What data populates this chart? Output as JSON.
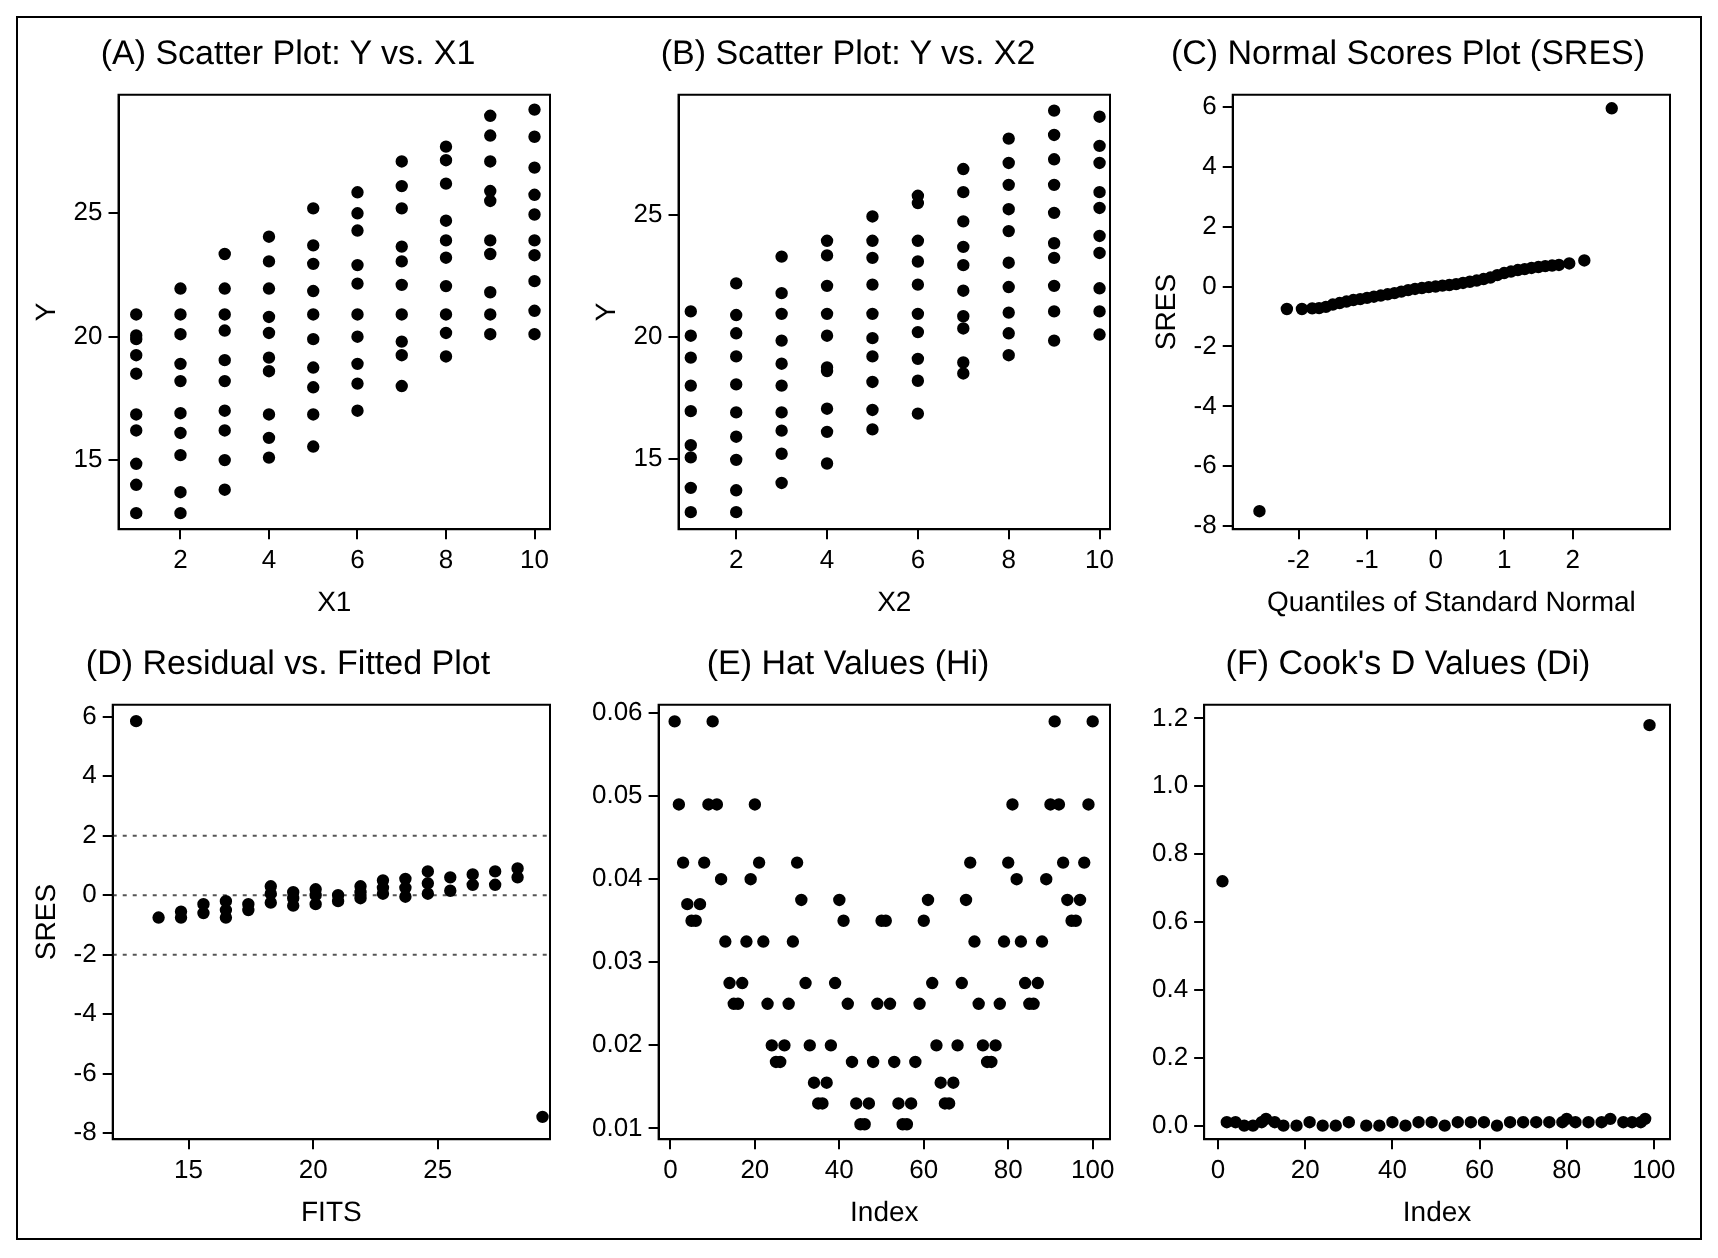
{
  "chart_data": [
    {
      "type": "scatter",
      "title": "(A) Scatter Plot: Y vs. X1",
      "xlabel": "X1",
      "ylabel": "Y",
      "marker": "circle",
      "xlim": [
        0.6,
        10.35
      ],
      "ylim": [
        12.2,
        29.8
      ],
      "xticks": [
        2,
        4,
        6,
        8,
        10
      ],
      "yticks": [
        15,
        20,
        25
      ],
      "series": [
        {
          "color": "#000000",
          "x": [
            1,
            1,
            1,
            1,
            1,
            1,
            1,
            1,
            1,
            1,
            2,
            2,
            2,
            2,
            2,
            2,
            2,
            2,
            2,
            2,
            3,
            3,
            3,
            3,
            3,
            3,
            3,
            3,
            3,
            3,
            4,
            4,
            4,
            4,
            4,
            4,
            4,
            4,
            4,
            4,
            5,
            5,
            5,
            5,
            5,
            5,
            5,
            5,
            5,
            5,
            6,
            6,
            6,
            6,
            6,
            6,
            6,
            6,
            6,
            6,
            7,
            7,
            7,
            7,
            7,
            7,
            7,
            7,
            7,
            7,
            8,
            8,
            8,
            8,
            8,
            8,
            8,
            8,
            8,
            8,
            9,
            9,
            9,
            9,
            9,
            9,
            9,
            9,
            9,
            9,
            10,
            10,
            10,
            10,
            10,
            10,
            10,
            10,
            10,
            10
          ],
          "values": [
            20.9,
            20.05,
            19.9,
            19.25,
            18.5,
            16.85,
            16.2,
            14.85,
            14.0,
            12.85,
            21.95,
            20.9,
            20.1,
            18.9,
            18.2,
            16.9,
            16.1,
            15.2,
            13.7,
            12.85,
            23.35,
            21.95,
            20.9,
            20.25,
            19.05,
            18.2,
            17.0,
            16.2,
            15.0,
            13.8,
            24.05,
            23.05,
            21.95,
            20.8,
            20.15,
            19.15,
            18.6,
            16.85,
            15.9,
            15.1,
            25.2,
            23.7,
            22.95,
            21.85,
            20.9,
            19.9,
            18.75,
            17.95,
            16.85,
            15.55,
            25.85,
            25.0,
            24.3,
            22.9,
            22.15,
            20.9,
            20.0,
            18.9,
            18.1,
            17.0,
            27.1,
            26.1,
            25.2,
            23.65,
            23.05,
            22.1,
            20.9,
            19.8,
            19.25,
            18.0,
            27.7,
            27.15,
            26.2,
            24.7,
            23.9,
            23.2,
            22.05,
            20.9,
            20.15,
            19.2,
            28.95,
            28.15,
            27.1,
            25.9,
            25.5,
            23.9,
            23.35,
            21.8,
            20.9,
            20.1,
            29.2,
            28.1,
            26.85,
            25.75,
            24.95,
            23.9,
            23.3,
            22.25,
            21.05,
            20.1
          ]
        }
      ]
    },
    {
      "type": "scatter",
      "title": "(B) Scatter Plot: Y vs. X2",
      "xlabel": "X2",
      "ylabel": "Y",
      "marker": "circle",
      "xlim": [
        0.73,
        10.23
      ],
      "ylim": [
        12.1,
        29.95
      ],
      "xticks": [
        2,
        4,
        6,
        8,
        10
      ],
      "yticks": [
        15,
        20,
        25
      ],
      "series": [
        {
          "color": "#000000",
          "x": [
            1,
            1,
            1,
            1,
            1,
            1,
            1,
            1,
            1,
            2,
            2,
            2,
            2,
            2,
            2,
            2,
            2,
            2,
            2,
            3,
            3,
            3,
            3,
            3,
            3,
            3,
            3,
            3,
            3,
            4,
            4,
            4,
            4,
            4,
            4,
            4,
            4,
            4,
            4,
            5,
            5,
            5,
            5,
            5,
            5,
            5,
            5,
            5,
            5,
            6,
            6,
            6,
            6,
            6,
            6,
            6,
            6,
            6,
            6,
            7,
            7,
            7,
            7,
            7,
            7,
            7,
            7,
            7,
            7,
            8,
            8,
            8,
            8,
            8,
            8,
            8,
            8,
            8,
            8,
            9,
            9,
            9,
            9,
            9,
            9,
            9,
            9,
            9,
            9,
            10,
            10,
            10,
            10,
            10,
            10,
            10,
            10,
            10,
            10
          ],
          "values": [
            21.05,
            20.05,
            19.15,
            18.0,
            16.95,
            15.55,
            15.05,
            13.8,
            12.8,
            22.2,
            20.9,
            20.15,
            19.2,
            18.05,
            16.9,
            15.9,
            14.95,
            13.7,
            12.8,
            23.3,
            21.8,
            20.95,
            19.85,
            18.9,
            18.0,
            16.9,
            16.15,
            15.2,
            14.0,
            23.95,
            23.35,
            22.1,
            20.95,
            20.05,
            18.75,
            18.6,
            17.05,
            16.1,
            14.8,
            24.95,
            23.95,
            23.25,
            22.15,
            20.95,
            19.95,
            19.2,
            18.15,
            17.0,
            16.2,
            25.8,
            25.5,
            23.95,
            23.1,
            22.15,
            20.95,
            20.2,
            19.1,
            18.2,
            16.85,
            26.9,
            25.95,
            24.75,
            23.7,
            22.95,
            21.9,
            20.85,
            20.35,
            18.95,
            18.5,
            28.15,
            27.15,
            26.25,
            25.25,
            24.35,
            23.05,
            22.05,
            21.0,
            20.15,
            19.25,
            29.3,
            28.3,
            27.3,
            26.25,
            25.1,
            23.85,
            23.25,
            22.1,
            21.05,
            19.85,
            29.05,
            27.85,
            27.15,
            25.95,
            25.3,
            24.15,
            23.45,
            22.0,
            21.05,
            20.1
          ]
        }
      ]
    },
    {
      "type": "scatter",
      "title": "(C) Normal Scores Plot (SRES)",
      "xlabel": "Quantiles of Standard Normal",
      "ylabel": "SRES",
      "marker": "circle",
      "xlim": [
        -2.96,
        3.42
      ],
      "ylim": [
        -8.1,
        6.4
      ],
      "xticks": [
        -2,
        -1,
        0,
        1,
        2
      ],
      "yticks": [
        -8,
        -6,
        -4,
        -2,
        0,
        2,
        4,
        6
      ],
      "series": [
        {
          "color": "#000000",
          "x": [
            -2.57,
            -2.17,
            -1.95,
            -1.8,
            -1.7,
            -1.6,
            -1.5,
            -1.4,
            -1.3,
            -1.2,
            -1.1,
            -1.0,
            -0.9,
            -0.8,
            -0.7,
            -0.6,
            -0.5,
            -0.4,
            -0.3,
            -0.2,
            -0.1,
            0,
            0.1,
            0.2,
            0.3,
            0.4,
            0.5,
            0.6,
            0.7,
            0.8,
            0.9,
            1.0,
            1.1,
            1.2,
            1.3,
            1.4,
            1.5,
            1.6,
            1.7,
            1.8,
            1.95,
            2.17,
            2.57
          ],
          "values": [
            -7.5,
            -0.75,
            -0.75,
            -0.73,
            -0.72,
            -0.68,
            -0.6,
            -0.55,
            -0.5,
            -0.45,
            -0.42,
            -0.38,
            -0.34,
            -0.3,
            -0.26,
            -0.22,
            -0.17,
            -0.12,
            -0.08,
            -0.05,
            -0.02,
            0,
            0.03,
            0.05,
            0.08,
            0.12,
            0.16,
            0.2,
            0.25,
            0.3,
            0.38,
            0.45,
            0.5,
            0.55,
            0.58,
            0.62,
            0.65,
            0.68,
            0.7,
            0.72,
            0.77,
            0.87,
            5.95
          ]
        }
      ]
    },
    {
      "type": "scatter",
      "title": "(D) Residual vs. Fitted Plot",
      "xlabel": "FITS",
      "ylabel": "SRES",
      "marker": "circle",
      "xlim": [
        11.96,
        29.5
      ],
      "ylim": [
        -8.2,
        6.4
      ],
      "xticks": [
        15,
        20,
        25
      ],
      "yticks": [
        -8,
        -6,
        -4,
        -2,
        0,
        2,
        4,
        6
      ],
      "ref_lines": [
        {
          "axis": "y",
          "value": 2,
          "color": "#555555",
          "line_style": "dotted"
        },
        {
          "axis": "y",
          "value": 0,
          "color": "#555555",
          "line_style": "dotted"
        },
        {
          "axis": "y",
          "value": -2,
          "color": "#555555",
          "line_style": "dotted"
        }
      ],
      "series": [
        {
          "color": "#000000",
          "x": [
            12.9,
            13.8,
            14.7,
            14.7,
            15.6,
            15.6,
            16.5,
            16.5,
            16.5,
            17.4,
            17.4,
            18.3,
            18.3,
            18.3,
            19.2,
            19.2,
            19.2,
            20.1,
            20.1,
            20.1,
            21.0,
            21.0,
            21.9,
            21.9,
            21.9,
            22.8,
            22.8,
            22.8,
            23.7,
            23.7,
            23.7,
            24.6,
            24.6,
            24.6,
            25.5,
            25.5,
            26.4,
            26.4,
            27.3,
            27.3,
            28.2,
            28.2,
            29.2
          ],
          "values": [
            5.85,
            -0.75,
            -0.55,
            -0.75,
            -0.3,
            -0.6,
            -0.2,
            -0.5,
            -0.75,
            -0.3,
            -0.5,
            0.3,
            0.05,
            -0.25,
            0.1,
            -0.1,
            -0.35,
            0.2,
            0,
            -0.3,
            0,
            -0.2,
            0.3,
            0.1,
            -0.1,
            0.5,
            0.25,
            0.05,
            0.55,
            0.25,
            -0.05,
            0.8,
            0.4,
            0.05,
            0.6,
            0.15,
            0.7,
            0.35,
            0.8,
            0.35,
            0.9,
            0.6,
            -7.45
          ]
        }
      ]
    },
    {
      "type": "scatter",
      "title": "(E) Hat Values (Hi)",
      "xlabel": "Index",
      "marker": "circle",
      "xlim": [
        -2.8,
        104.1
      ],
      "ylim": [
        0.0087,
        0.061
      ],
      "xticks": [
        0,
        20,
        40,
        60,
        80,
        100
      ],
      "yticks": [
        0.01,
        0.02,
        0.03,
        0.04,
        0.05,
        0.06
      ],
      "series": [
        {
          "color": "#000000",
          "x": [
            1,
            2,
            3,
            4,
            5,
            6,
            7,
            8,
            9,
            10,
            11,
            12,
            13,
            14,
            15,
            16,
            17,
            18,
            19,
            20,
            21,
            22,
            23,
            24,
            25,
            26,
            27,
            28,
            29,
            30,
            31,
            32,
            33,
            34,
            35,
            36,
            37,
            38,
            39,
            40,
            41,
            42,
            43,
            44,
            45,
            46,
            47,
            48,
            49,
            50,
            51,
            52,
            53,
            54,
            55,
            56,
            57,
            58,
            59,
            60,
            61,
            62,
            63,
            64,
            65,
            66,
            67,
            68,
            69,
            70,
            71,
            72,
            73,
            74,
            75,
            76,
            77,
            78,
            79,
            80,
            81,
            82,
            83,
            84,
            85,
            86,
            87,
            88,
            89,
            90,
            91,
            92,
            93,
            94,
            95,
            96,
            97,
            98,
            99,
            100
          ],
          "values": [
            0.059,
            0.049,
            0.042,
            0.037,
            0.035,
            0.035,
            0.037,
            0.042,
            0.049,
            0.059,
            0.049,
            0.04,
            0.0325,
            0.0275,
            0.025,
            0.025,
            0.0275,
            0.0325,
            0.04,
            0.049,
            0.042,
            0.0325,
            0.025,
            0.02,
            0.018,
            0.018,
            0.02,
            0.025,
            0.0325,
            0.042,
            0.0375,
            0.0275,
            0.02,
            0.0155,
            0.013,
            0.013,
            0.0155,
            0.02,
            0.0275,
            0.0375,
            0.035,
            0.025,
            0.018,
            0.013,
            0.0105,
            0.0105,
            0.013,
            0.018,
            0.025,
            0.035,
            0.035,
            0.025,
            0.018,
            0.013,
            0.0105,
            0.0105,
            0.013,
            0.018,
            0.025,
            0.035,
            0.0375,
            0.0275,
            0.02,
            0.0155,
            0.013,
            0.013,
            0.0155,
            0.02,
            0.0275,
            0.0375,
            0.042,
            0.0325,
            0.025,
            0.02,
            0.018,
            0.018,
            0.02,
            0.025,
            0.0325,
            0.042,
            0.049,
            0.04,
            0.0325,
            0.0275,
            0.025,
            0.025,
            0.0275,
            0.0325,
            0.04,
            0.049,
            0.059,
            0.049,
            0.042,
            0.0375,
            0.035,
            0.035,
            0.0375,
            0.042,
            0.049,
            0.059
          ]
        }
      ]
    },
    {
      "type": "scatter",
      "title": "(F) Cook's D Values (Di)",
      "xlabel": "Index",
      "marker": "circle",
      "xlim": [
        -3.2,
        103.7
      ],
      "ylim": [
        -0.04,
        1.24
      ],
      "xticks": [
        0,
        20,
        40,
        60,
        80,
        100
      ],
      "yticks": [
        {
          "value": 0,
          "label": "0.0"
        },
        0.2,
        0.4,
        0.6,
        0.8,
        {
          "value": 1,
          "label": "1.0"
        },
        1.2
      ],
      "series": [
        {
          "color": "#000000",
          "x": [
            1,
            2,
            4,
            6,
            8,
            10,
            11,
            13,
            15,
            18,
            21,
            24,
            27,
            30,
            34,
            37,
            40,
            43,
            46,
            49,
            52,
            55,
            58,
            61,
            64,
            67,
            70,
            73,
            76,
            79,
            80,
            82,
            85,
            88,
            90,
            93,
            95,
            97,
            98,
            99
          ],
          "values": [
            0.72,
            0.01,
            0.01,
            0,
            0,
            0.01,
            0.02,
            0.01,
            0,
            0,
            0.01,
            0,
            0,
            0.01,
            0,
            0,
            0.01,
            0,
            0.01,
            0.01,
            0,
            0.01,
            0.01,
            0.01,
            0,
            0.01,
            0.01,
            0.01,
            0.01,
            0.01,
            0.02,
            0.01,
            0.01,
            0.01,
            0.02,
            0.01,
            0.01,
            0.01,
            0.02,
            1.18
          ]
        }
      ]
    }
  ]
}
